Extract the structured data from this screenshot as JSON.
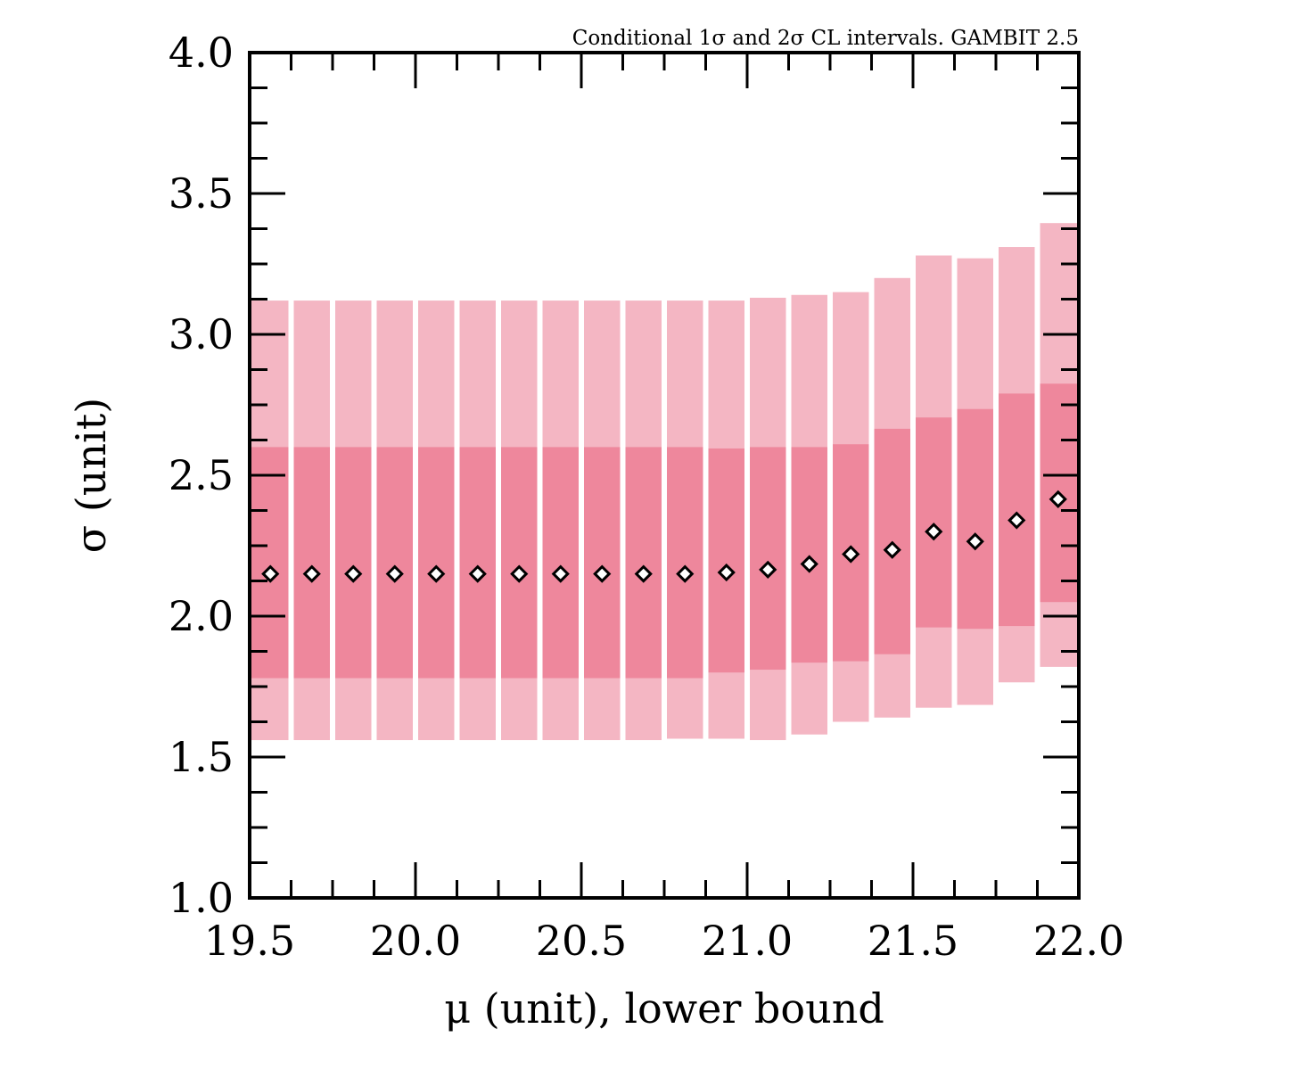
{
  "chart_data": {
    "type": "bar",
    "title": "Conditional 1σ and 2σ CL intervals. GAMBIT 2.5",
    "xlabel": "μ (unit), lower bound",
    "ylabel": "σ (unit)",
    "xlim": [
      19.5,
      22.0
    ],
    "ylim": [
      1.0,
      4.0
    ],
    "x_ticks": [
      19.5,
      20.0,
      20.5,
      21.0,
      21.5,
      22.0
    ],
    "y_ticks": [
      1.0,
      1.5,
      2.0,
      2.5,
      3.0,
      3.5,
      4.0
    ],
    "x_tick_labels": [
      "19.5",
      "20.0",
      "20.5",
      "21.0",
      "21.5",
      "22.0"
    ],
    "y_tick_labels": [
      "1.0",
      "1.5",
      "2.0",
      "2.5",
      "3.0",
      "3.5",
      "4.0"
    ],
    "bin_width": 0.125,
    "grid": false,
    "colors": {
      "band_2sigma": "#f4b6c3",
      "band_1sigma": "#ee879c",
      "marker_fill": "#ffffff",
      "marker_edge": "#000000"
    },
    "bins": [
      {
        "x": 19.5625,
        "y2_low": 1.56,
        "y1_low": 1.78,
        "y1_high": 2.6,
        "y2_high": 3.12,
        "best": 2.15
      },
      {
        "x": 19.6875,
        "y2_low": 1.56,
        "y1_low": 1.78,
        "y1_high": 2.6,
        "y2_high": 3.12,
        "best": 2.15
      },
      {
        "x": 19.8125,
        "y2_low": 1.56,
        "y1_low": 1.78,
        "y1_high": 2.6,
        "y2_high": 3.12,
        "best": 2.15
      },
      {
        "x": 19.9375,
        "y2_low": 1.56,
        "y1_low": 1.78,
        "y1_high": 2.6,
        "y2_high": 3.12,
        "best": 2.15
      },
      {
        "x": 20.0625,
        "y2_low": 1.56,
        "y1_low": 1.78,
        "y1_high": 2.6,
        "y2_high": 3.12,
        "best": 2.15
      },
      {
        "x": 20.1875,
        "y2_low": 1.56,
        "y1_low": 1.78,
        "y1_high": 2.6,
        "y2_high": 3.12,
        "best": 2.15
      },
      {
        "x": 20.3125,
        "y2_low": 1.56,
        "y1_low": 1.78,
        "y1_high": 2.6,
        "y2_high": 3.12,
        "best": 2.15
      },
      {
        "x": 20.4375,
        "y2_low": 1.56,
        "y1_low": 1.78,
        "y1_high": 2.6,
        "y2_high": 3.12,
        "best": 2.15
      },
      {
        "x": 20.5625,
        "y2_low": 1.56,
        "y1_low": 1.78,
        "y1_high": 2.6,
        "y2_high": 3.12,
        "best": 2.15
      },
      {
        "x": 20.6875,
        "y2_low": 1.56,
        "y1_low": 1.78,
        "y1_high": 2.6,
        "y2_high": 3.12,
        "best": 2.15
      },
      {
        "x": 20.8125,
        "y2_low": 1.565,
        "y1_low": 1.78,
        "y1_high": 2.6,
        "y2_high": 3.12,
        "best": 2.15
      },
      {
        "x": 20.9375,
        "y2_low": 1.565,
        "y1_low": 1.8,
        "y1_high": 2.595,
        "y2_high": 3.12,
        "best": 2.155
      },
      {
        "x": 21.0625,
        "y2_low": 1.56,
        "y1_low": 1.81,
        "y1_high": 2.6,
        "y2_high": 3.13,
        "best": 2.165
      },
      {
        "x": 21.1875,
        "y2_low": 1.58,
        "y1_low": 1.835,
        "y1_high": 2.6,
        "y2_high": 3.14,
        "best": 2.185
      },
      {
        "x": 21.3125,
        "y2_low": 1.625,
        "y1_low": 1.84,
        "y1_high": 2.61,
        "y2_high": 3.15,
        "best": 2.22
      },
      {
        "x": 21.4375,
        "y2_low": 1.64,
        "y1_low": 1.865,
        "y1_high": 2.665,
        "y2_high": 3.2,
        "best": 2.235
      },
      {
        "x": 21.5625,
        "y2_low": 1.675,
        "y1_low": 1.96,
        "y1_high": 2.705,
        "y2_high": 3.28,
        "best": 2.3
      },
      {
        "x": 21.6875,
        "y2_low": 1.685,
        "y1_low": 1.955,
        "y1_high": 2.735,
        "y2_high": 3.27,
        "best": 2.265
      },
      {
        "x": 21.8125,
        "y2_low": 1.765,
        "y1_low": 1.965,
        "y1_high": 2.79,
        "y2_high": 3.31,
        "best": 2.34
      },
      {
        "x": 21.9375,
        "y2_low": 1.82,
        "y1_low": 2.05,
        "y1_high": 2.825,
        "y2_high": 3.395,
        "best": 2.415
      }
    ]
  }
}
